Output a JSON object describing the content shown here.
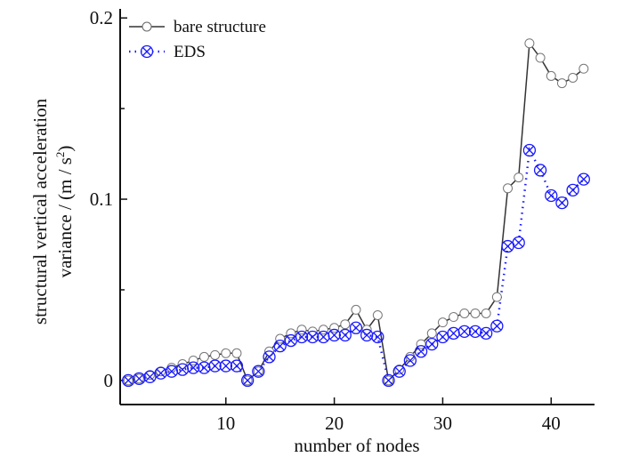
{
  "chart_data": {
    "type": "line",
    "title": "",
    "xlabel": "number of nodes",
    "ylabel": [
      "structural vertical acceleration",
      "variance / (m / s",
      "2",
      ")"
    ],
    "xlim": [
      0.25,
      44
    ],
    "ylim": [
      -0.0133,
      0.205
    ],
    "xticks": [
      10,
      20,
      30,
      40
    ],
    "xtick_labels": [
      "10",
      "20",
      "30",
      "40"
    ],
    "yticks": [
      0,
      0.1,
      0.2
    ],
    "ytick_labels": [
      "0",
      "0.1",
      "0.2"
    ],
    "yminor_ticks": [
      0.05,
      0.15
    ],
    "grid": false,
    "legend_position": "top-left",
    "x": [
      1,
      2,
      3,
      4,
      5,
      6,
      7,
      8,
      9,
      10,
      11,
      12,
      13,
      14,
      15,
      16,
      17,
      18,
      19,
      20,
      21,
      22,
      23,
      24,
      25,
      26,
      27,
      28,
      29,
      30,
      31,
      32,
      33,
      34,
      35,
      36,
      37,
      38,
      39,
      40,
      41,
      42,
      43
    ],
    "series": [
      {
        "name": "bare structure",
        "color": "#333333",
        "marker": "open-circle",
        "line": "solid",
        "values": [
          0.0,
          0.001,
          0.003,
          0.005,
          0.007,
          0.009,
          0.011,
          0.013,
          0.014,
          0.015,
          0.015,
          0.0,
          0.005,
          0.016,
          0.023,
          0.026,
          0.028,
          0.027,
          0.028,
          0.029,
          0.031,
          0.039,
          0.028,
          0.036,
          0.0,
          0.006,
          0.013,
          0.02,
          0.026,
          0.032,
          0.035,
          0.037,
          0.037,
          0.037,
          0.046,
          0.106,
          0.112,
          0.186,
          0.178,
          0.168,
          0.164,
          0.167,
          0.172
        ]
      },
      {
        "name": "EDS",
        "color": "#1a1aff",
        "marker": "circle-x",
        "line": "dotted",
        "values": [
          0.0,
          0.001,
          0.002,
          0.004,
          0.005,
          0.006,
          0.007,
          0.007,
          0.008,
          0.008,
          0.008,
          0.0,
          0.005,
          0.013,
          0.019,
          0.022,
          0.024,
          0.024,
          0.024,
          0.025,
          0.025,
          0.029,
          0.025,
          0.024,
          0.0,
          0.005,
          0.011,
          0.016,
          0.02,
          0.024,
          0.026,
          0.027,
          0.027,
          0.026,
          0.03,
          0.074,
          0.076,
          0.127,
          0.116,
          0.102,
          0.098,
          0.105,
          0.111
        ]
      }
    ]
  }
}
